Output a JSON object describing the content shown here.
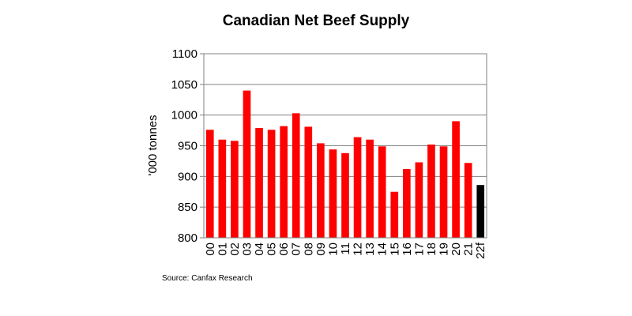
{
  "chart_data": {
    "type": "bar",
    "title": "Canadian Net Beef Supply",
    "xlabel": "",
    "ylabel": "'000 tonnes",
    "ylim": [
      800,
      1100
    ],
    "yticks": [
      "800",
      "850",
      "900",
      "950",
      "1000",
      "1050",
      "1100"
    ],
    "grid": true,
    "categories": [
      "00",
      "01",
      "02",
      "03",
      "04",
      "05",
      "06",
      "07",
      "08",
      "09",
      "10",
      "11",
      "12",
      "13",
      "14",
      "15",
      "16",
      "17",
      "18",
      "19",
      "20",
      "21",
      "22f"
    ],
    "values": [
      976,
      960,
      958,
      1040,
      979,
      976,
      982,
      1003,
      981,
      954,
      944,
      938,
      964,
      960,
      949,
      875,
      912,
      923,
      952,
      949,
      990,
      922,
      886
    ],
    "colors": [
      "#ff0000",
      "#ff0000",
      "#ff0000",
      "#ff0000",
      "#ff0000",
      "#ff0000",
      "#ff0000",
      "#ff0000",
      "#ff0000",
      "#ff0000",
      "#ff0000",
      "#ff0000",
      "#ff0000",
      "#ff0000",
      "#ff0000",
      "#ff0000",
      "#ff0000",
      "#ff0000",
      "#ff0000",
      "#ff0000",
      "#ff0000",
      "#ff0000",
      "#000000"
    ]
  },
  "source": "Source: Canfax Research"
}
